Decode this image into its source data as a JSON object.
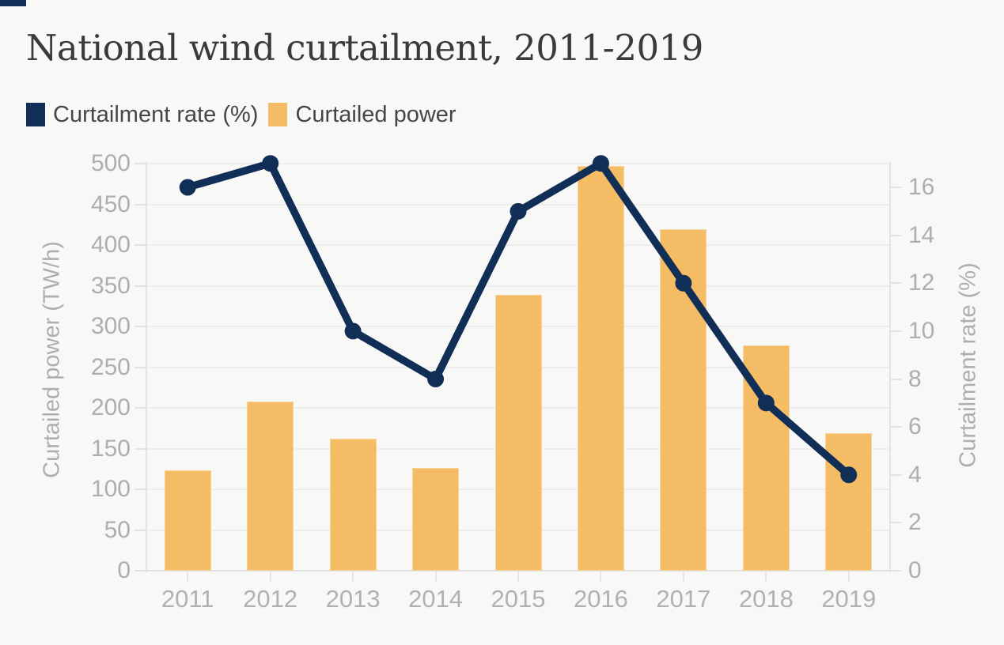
{
  "header": {
    "title": "National wind curtailment, 2011-2019"
  },
  "legend": [
    {
      "label": "Curtailment rate (%)",
      "color": "#112e56"
    },
    {
      "label": "Curtailed power",
      "color": "#f4bc64"
    }
  ],
  "chart_data": {
    "type": "combo-bar-line",
    "title": "National wind curtailment, 2011-2019",
    "categories": [
      "2011",
      "2012",
      "2013",
      "2014",
      "2015",
      "2016",
      "2017",
      "2018",
      "2019"
    ],
    "series": [
      {
        "name": "Curtailment rate (%)",
        "type": "line",
        "axis": "right",
        "color": "#112e56",
        "values": [
          16,
          17,
          10,
          8,
          15,
          17,
          12,
          7,
          4
        ]
      },
      {
        "name": "Curtailed power",
        "type": "bar",
        "axis": "left",
        "color": "#f4bc64",
        "values": [
          123,
          208,
          162,
          126,
          339,
          497,
          419,
          277,
          169
        ]
      }
    ],
    "left_axis": {
      "label": "Curtailed power (TW/h)",
      "min": 0,
      "max": 500,
      "tick_step": 50,
      "ticks": [
        0,
        50,
        100,
        150,
        200,
        250,
        300,
        350,
        400,
        450,
        500
      ]
    },
    "right_axis": {
      "label": "Curtailment rate (%)",
      "min": 0,
      "max": 17,
      "tick_step": 2,
      "ticks": [
        0,
        2,
        4,
        6,
        8,
        10,
        12,
        14,
        16
      ]
    },
    "grid": "horizontal",
    "legend_position": "top-left"
  }
}
